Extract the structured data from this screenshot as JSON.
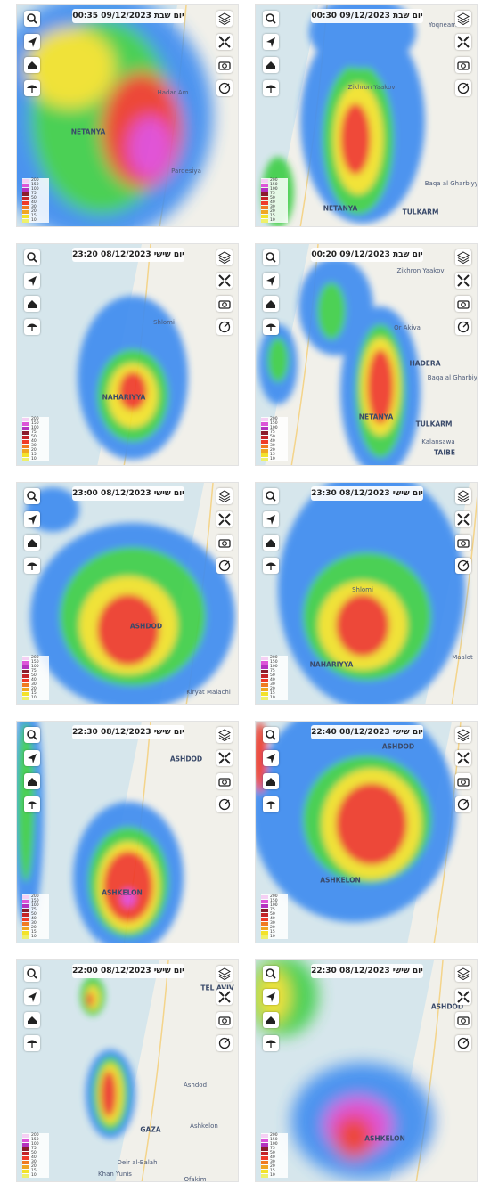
{
  "panels": [
    {
      "timestamp": "יום שבת 09/12/2023 00:35",
      "places": [
        "Hadar Am",
        "NETANYA",
        "Pardesiya"
      ]
    },
    {
      "timestamp": "יום שבת 09/12/2023 00:30",
      "places": [
        "Yoqneam",
        "Zikhron Yaakov",
        "Baqa al Gharbiyya",
        "NETANYA",
        "TULKARM"
      ]
    },
    {
      "timestamp": "יום שישי 08/12/2023 23:20",
      "places": [
        "Shlomi",
        "NAHARIYYA"
      ]
    },
    {
      "timestamp": "יום שבת 09/12/2023 00:20",
      "places": [
        "Zikhron Yaakov",
        "Or Akiva",
        "HADERA",
        "Baqa al Gharbiyya",
        "NETANYA",
        "TULKARM",
        "Kalansawa",
        "TAIBE"
      ]
    },
    {
      "timestamp": "יום שישי 08/12/2023 23:00",
      "places": [
        "ASHDOD",
        "Kiryat Malachi"
      ]
    },
    {
      "timestamp": "יום שישי 08/12/2023 23:30",
      "places": [
        "Shlomi",
        "Maalot",
        "NAHARIYYA"
      ]
    },
    {
      "timestamp": "יום שישי 08/12/2023 22:30",
      "places": [
        "ASHDOD",
        "ASHKELON"
      ]
    },
    {
      "timestamp": "יום שישי 08/12/2023 22:40",
      "places": [
        "ASHDOD",
        "ASHKELON"
      ]
    },
    {
      "timestamp": "יום שישי 08/12/2023 22:00",
      "places": [
        "TEL AVIV",
        "Ashdod",
        "Ashkelon",
        "GAZA",
        "Deir al-Balah",
        "Khan Yunis",
        "Ofakim"
      ]
    },
    {
      "timestamp": "יום שישי 08/12/2023 22:30",
      "places": [
        "ASHDOD",
        "ASHKELON"
      ]
    }
  ],
  "legend_levels": [
    200,
    150,
    100,
    75,
    50,
    40,
    30,
    20,
    15,
    10
  ]
}
